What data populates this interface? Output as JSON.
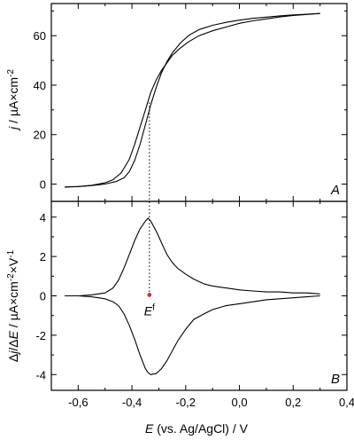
{
  "chart_data": [
    {
      "panel": "A",
      "type": "line",
      "ylabel": "j / µA×cm-2",
      "ylim": [
        -7,
        73
      ],
      "yticks": [
        "0",
        "20",
        "40",
        "60"
      ],
      "xlim": [
        -0.7,
        0.4
      ],
      "grid": false,
      "series": [
        {
          "name": "",
          "x": [
            -0.65,
            -0.6,
            -0.55,
            -0.5,
            -0.47,
            -0.44,
            -0.41,
            -0.39,
            -0.37,
            -0.35,
            -0.33,
            -0.31,
            -0.29,
            -0.27,
            -0.25,
            -0.22,
            -0.19,
            -0.15,
            -0.1,
            -0.05,
            0.0,
            0.05,
            0.1,
            0.15,
            0.2,
            0.25,
            0.3
          ],
          "y": [
            -1.2,
            -1.0,
            -0.5,
            0.5,
            1.8,
            4.5,
            10,
            16,
            23,
            30,
            37,
            42,
            46,
            49,
            52,
            55,
            57.5,
            60,
            62,
            63.5,
            65,
            66,
            66.8,
            67.6,
            68.2,
            68.6,
            69.0
          ]
        },
        {
          "name": "",
          "x": [
            0.3,
            0.25,
            0.2,
            0.15,
            0.1,
            0.05,
            0.0,
            -0.05,
            -0.1,
            -0.15,
            -0.19,
            -0.22,
            -0.25,
            -0.27,
            -0.29,
            -0.31,
            -0.33,
            -0.35,
            -0.37,
            -0.39,
            -0.41,
            -0.43,
            -0.46,
            -0.5,
            -0.55,
            -0.6,
            -0.65
          ],
          "y": [
            69.0,
            68.7,
            68.4,
            68.0,
            67.5,
            67.0,
            66.3,
            65.4,
            64.2,
            62.5,
            60.0,
            57.0,
            53.0,
            49.5,
            45,
            39,
            32,
            24,
            16,
            9.5,
            5,
            2.5,
            1.0,
            0.0,
            -0.6,
            -1.0,
            -1.2
          ]
        }
      ],
      "annotations": [
        {
          "text": "A",
          "position": "bottom-right"
        }
      ]
    },
    {
      "panel": "B",
      "type": "line",
      "xlabel": "E (vs. Ag/AgCl) / V",
      "ylabel": "Δj/ΔE / µA×cm-2×V-1",
      "xlim": [
        -0.7,
        0.4
      ],
      "ylim": [
        -4.8,
        4.8
      ],
      "xticks": [
        "-0,6",
        "-0,4",
        "-0,2",
        "0,0",
        "0,2",
        "0,4"
      ],
      "yticks": [
        "-4",
        "-2",
        "0",
        "2",
        "4"
      ],
      "grid": false,
      "series": [
        {
          "name": "",
          "x": [
            -0.65,
            -0.6,
            -0.55,
            -0.5,
            -0.47,
            -0.45,
            -0.43,
            -0.41,
            -0.39,
            -0.37,
            -0.35,
            -0.34,
            -0.33,
            -0.31,
            -0.29,
            -0.27,
            -0.25,
            -0.23,
            -0.2,
            -0.17,
            -0.13,
            -0.1,
            -0.05,
            0.0,
            0.05,
            0.1,
            0.15,
            0.2,
            0.25,
            0.3
          ],
          "y": [
            0.0,
            0.0,
            0.05,
            0.15,
            0.4,
            0.8,
            1.4,
            2.1,
            2.8,
            3.4,
            3.8,
            3.95,
            3.8,
            3.3,
            2.7,
            2.1,
            1.7,
            1.4,
            1.1,
            0.85,
            0.6,
            0.5,
            0.4,
            0.3,
            0.25,
            0.2,
            0.2,
            0.15,
            0.15,
            0.1
          ]
        },
        {
          "name": "",
          "x": [
            0.3,
            0.25,
            0.2,
            0.15,
            0.1,
            0.05,
            0.0,
            -0.05,
            -0.1,
            -0.13,
            -0.17,
            -0.2,
            -0.23,
            -0.25,
            -0.27,
            -0.29,
            -0.31,
            -0.33,
            -0.34,
            -0.35,
            -0.37,
            -0.39,
            -0.41,
            -0.43,
            -0.45,
            -0.47,
            -0.5,
            -0.55,
            -0.6,
            -0.65
          ],
          "y": [
            0.0,
            -0.05,
            -0.1,
            -0.15,
            -0.2,
            -0.3,
            -0.4,
            -0.5,
            -0.7,
            -0.9,
            -1.2,
            -1.7,
            -2.3,
            -2.8,
            -3.3,
            -3.7,
            -3.95,
            -4.0,
            -3.9,
            -3.7,
            -3.0,
            -2.2,
            -1.5,
            -0.9,
            -0.5,
            -0.3,
            -0.15,
            -0.05,
            0.0,
            0.0
          ]
        }
      ],
      "annotations": [
        {
          "text": "E",
          "superscript": "f",
          "x": -0.335,
          "y": 0.15
        },
        {
          "text": "B",
          "position": "bottom-right"
        }
      ]
    }
  ],
  "marker": {
    "e_f": -0.335,
    "color": "#c0392b"
  }
}
